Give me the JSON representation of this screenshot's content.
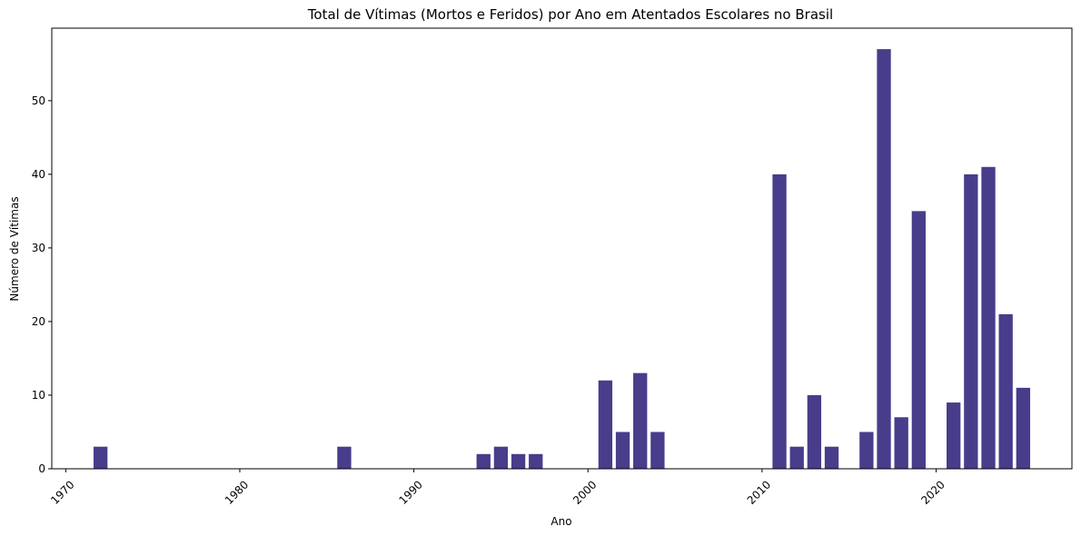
{
  "chart_data": {
    "type": "bar",
    "title": "Total de Vítimas (Mortos e Feridos) por Ano em Atentados Escolares no Brasil",
    "xlabel": "Ano",
    "ylabel": "Número de Vítimas",
    "x": [
      1972,
      1986,
      1994,
      1995,
      1996,
      1997,
      2001,
      2002,
      2003,
      2004,
      2011,
      2012,
      2013,
      2014,
      2016,
      2017,
      2018,
      2019,
      2021,
      2022,
      2023,
      2024,
      2025
    ],
    "values": [
      3,
      3,
      2,
      3,
      2,
      2,
      12,
      5,
      13,
      5,
      40,
      3,
      10,
      3,
      5,
      57,
      7,
      35,
      9,
      40,
      41,
      21,
      11
    ],
    "xlim": [
      1969.2,
      2027.8
    ],
    "ylim": [
      0,
      59.85
    ],
    "xticks": [
      1970,
      1980,
      1990,
      2000,
      2010,
      2020
    ],
    "yticks": [
      0,
      10,
      20,
      30,
      40,
      50
    ],
    "bar_color": "#483d8b",
    "grid": false,
    "legend": "none"
  }
}
